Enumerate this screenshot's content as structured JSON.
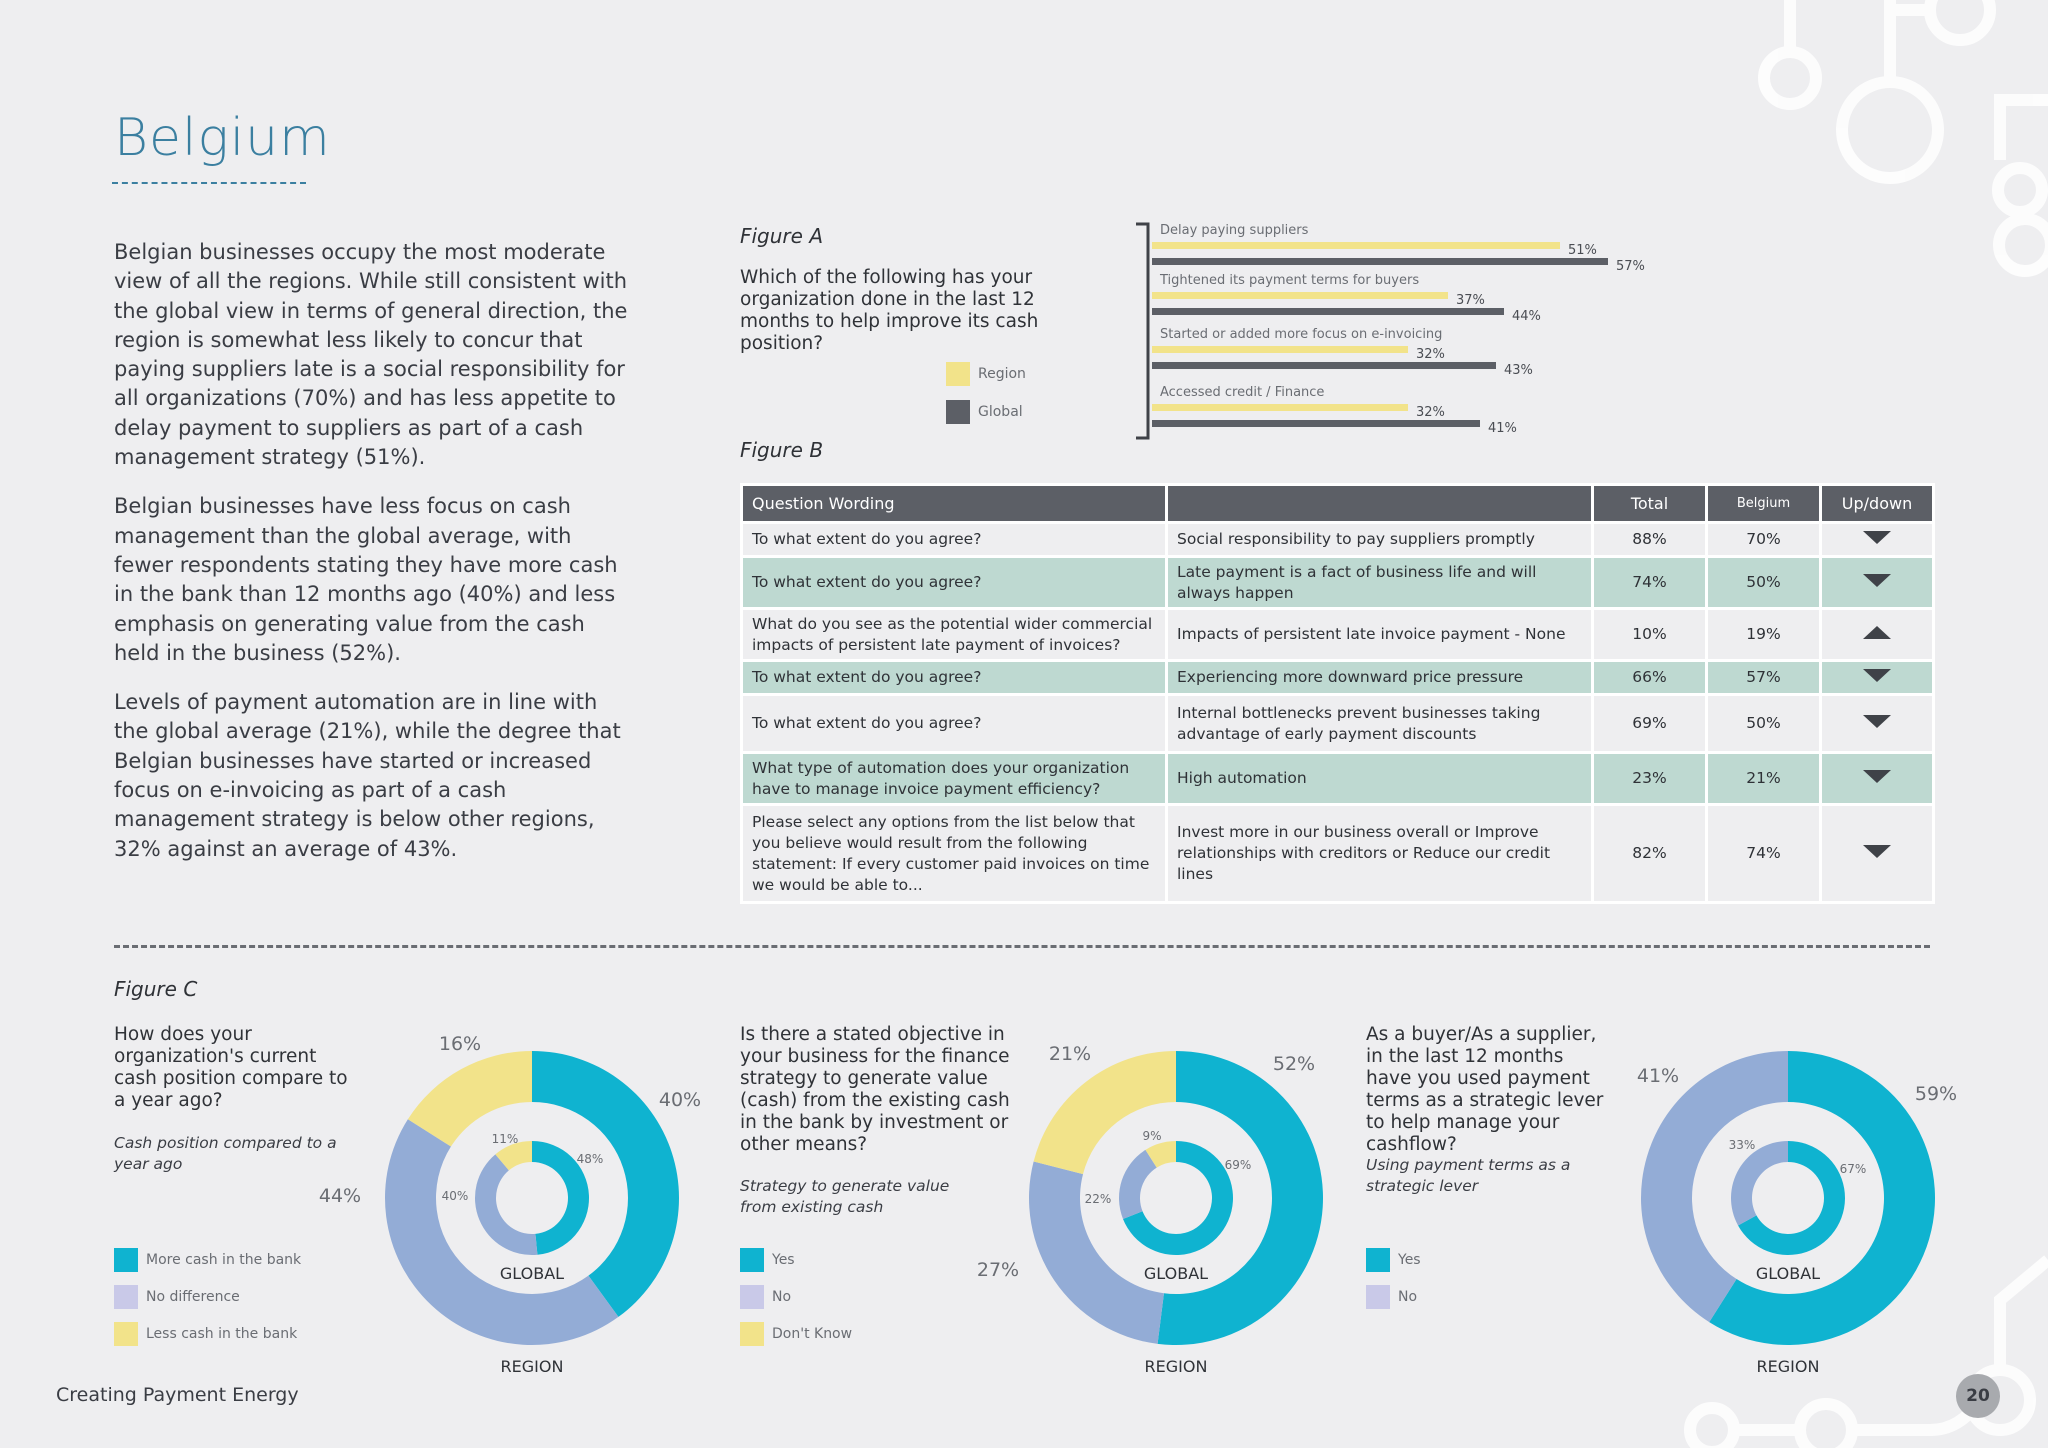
{
  "page": {
    "title": "Belgium",
    "footer": "Creating Payment Energy",
    "page_number": "20"
  },
  "intro": [
    "Belgian businesses occupy the most moderate view of all the regions. While still consistent with the global view in terms of general direction, the region is somewhat less likely to concur that paying suppliers late is a social responsibility for all organizations (70%) and has less appetite to delay payment to suppliers as part of a cash management strategy (51%).",
    "Belgian businesses have less focus on cash management than the global average, with fewer respondents stating they have more cash in the bank than 12 months ago (40%) and less emphasis on generating value from the cash held in the business (52%).",
    "Levels of payment automation are in line with the global average (21%), while the degree that Belgian businesses have started or increased focus on e-invoicing as part of a cash management strategy is below other regions, 32% against an average of 43%."
  ],
  "colors": {
    "region": "#f2e38a",
    "global": "#5c5f66",
    "teal": "#0fb3d0",
    "blue": "#93acd6",
    "yellow": "#f2e38a",
    "lavender": "#c9c9e8"
  },
  "figA": {
    "label": "Figure A",
    "question": "Which of the following has your organization done in the last 12 months to help improve its cash position?",
    "legend": {
      "region": "Region",
      "global": "Global"
    },
    "chart_data": {
      "type": "bar",
      "orientation": "horizontal",
      "categories": [
        "Delay paying suppliers",
        "Tightened its payment terms for buyers",
        "Started or added more focus on e-invoicing",
        "Accessed credit / Finance"
      ],
      "series": [
        {
          "name": "Region",
          "values": [
            51,
            37,
            32,
            32
          ]
        },
        {
          "name": "Global",
          "values": [
            57,
            44,
            43,
            41
          ]
        }
      ],
      "value_labels": {
        "Region": [
          "51%",
          "37%",
          "32%",
          "32%"
        ],
        "Global": [
          "57%",
          "44%",
          "43%",
          "41%"
        ]
      }
    }
  },
  "figB": {
    "label": "Figure B",
    "headers": [
      "Question Wording",
      "",
      "Total",
      "Belgium",
      "Up/down"
    ],
    "rows": [
      {
        "q": "To what extent do you agree?",
        "s": "Social responsibility to pay suppliers promptly",
        "total": "88%",
        "belgium": "70%",
        "dir": "down"
      },
      {
        "q": "To what extent do you agree?",
        "s": "Late payment is a fact of business life and will always happen",
        "total": "74%",
        "belgium": "50%",
        "dir": "down"
      },
      {
        "q": "What do you see as the potential wider commercial impacts of persistent late payment of invoices?",
        "s": "Impacts of persistent late invoice payment - None",
        "total": "10%",
        "belgium": "19%",
        "dir": "up"
      },
      {
        "q": "To what extent do you agree?",
        "s": "Experiencing more downward price pressure",
        "total": "66%",
        "belgium": "57%",
        "dir": "down"
      },
      {
        "q": "To what extent do you agree?",
        "s": "Internal bottlenecks prevent businesses taking advantage of early payment discounts",
        "total": "69%",
        "belgium": "50%",
        "dir": "down"
      },
      {
        "q": "What type of automation does your organization have to manage invoice payment efficiency?",
        "s": "High automation",
        "total": "23%",
        "belgium": "21%",
        "dir": "down"
      },
      {
        "q": "Please select any options from the list below that you believe would result from the following statement: If every customer paid invoices on time we would be able to...",
        "s": "Invest more in our business overall or Improve relationships with creditors or Reduce our credit lines",
        "total": "82%",
        "belgium": "74%",
        "dir": "down"
      }
    ]
  },
  "figC": {
    "label": "Figure C",
    "inner_label": "GLOBAL",
    "outer_label": "REGION",
    "charts": [
      {
        "question": "How does your organization's current cash position compare to a year ago?",
        "subtitle": "Cash position compared to a year ago",
        "legend": [
          "More cash in the bank",
          "No difference",
          "Less cash in the bank"
        ],
        "chart_data": {
          "type": "pie",
          "categories": [
            "More cash in the bank",
            "No difference",
            "Less cash in the bank"
          ],
          "series": [
            {
              "name": "REGION",
              "values": [
                40,
                44,
                16
              ],
              "labels": [
                "40%",
                "44%",
                "16%"
              ]
            },
            {
              "name": "GLOBAL",
              "values": [
                48,
                40,
                11
              ],
              "labels": [
                "48%",
                "40%",
                "11%"
              ]
            }
          ]
        }
      },
      {
        "question": "Is there a stated objective in your business for the finance strategy to generate value (cash) from the existing cash in the bank by investment or other means?",
        "subtitle": "Strategy to generate value from existing cash",
        "legend": [
          "Yes",
          "No",
          "Don't Know"
        ],
        "chart_data": {
          "type": "pie",
          "categories": [
            "Yes",
            "No",
            "Don't Know"
          ],
          "series": [
            {
              "name": "REGION",
              "values": [
                52,
                27,
                21
              ],
              "labels": [
                "52%",
                "27%",
                "21%"
              ]
            },
            {
              "name": "GLOBAL",
              "values": [
                69,
                22,
                9
              ],
              "labels": [
                "69%",
                "22%",
                "9%"
              ]
            }
          ]
        }
      },
      {
        "question": "As a buyer/As a supplier, in the last 12 months have you used payment terms as a strategic lever to help manage your cashflow?",
        "subtitle": "Using payment terms as a strategic lever",
        "legend": [
          "Yes",
          "No"
        ],
        "chart_data": {
          "type": "pie",
          "categories": [
            "Yes",
            "No"
          ],
          "series": [
            {
              "name": "REGION",
              "values": [
                59,
                41
              ],
              "labels": [
                "59%",
                "41%"
              ]
            },
            {
              "name": "GLOBAL",
              "values": [
                67,
                33
              ],
              "labels": [
                "67%",
                "33%"
              ]
            }
          ]
        }
      }
    ]
  }
}
